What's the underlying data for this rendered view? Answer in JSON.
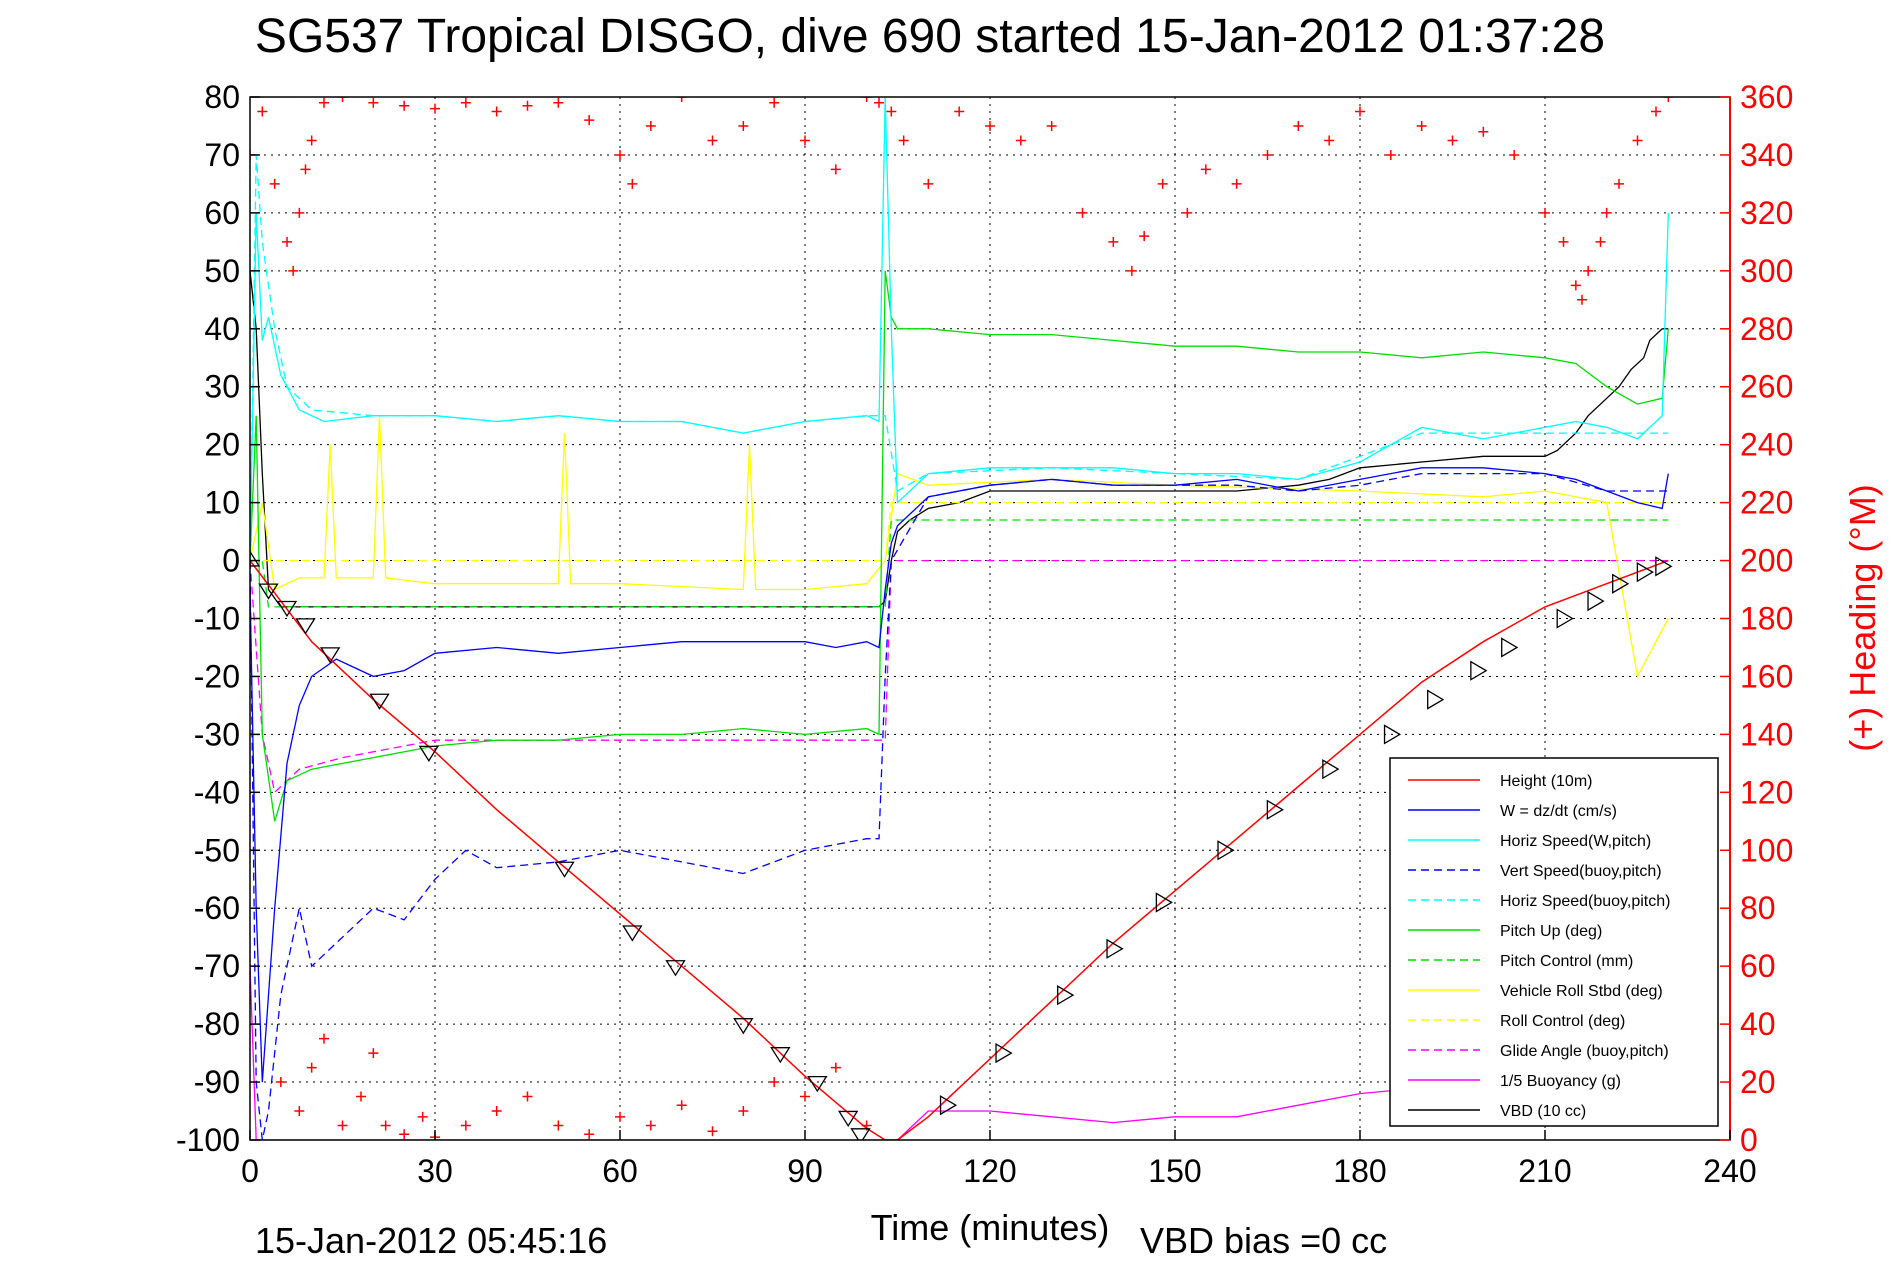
{
  "chart_data": {
    "type": "line",
    "title": "SG537 Tropical DISGO, dive 690 started 15-Jan-2012 01:37:28",
    "xlabel": "Time (minutes)",
    "ylabel_right": "(+) Heading (°M)",
    "xlim": [
      0,
      240
    ],
    "ylim": [
      -100,
      80
    ],
    "ylim_right": [
      0,
      360
    ],
    "x_ticks": [
      0,
      30,
      60,
      90,
      120,
      150,
      180,
      210,
      240
    ],
    "y_ticks": [
      80,
      70,
      60,
      50,
      40,
      30,
      20,
      10,
      0,
      -10,
      -20,
      -30,
      -40,
      -50,
      -60,
      -70,
      -80,
      -90,
      -100
    ],
    "y_right_ticks": [
      360,
      340,
      320,
      300,
      280,
      260,
      240,
      220,
      200,
      180,
      160,
      140,
      120,
      100,
      80,
      60,
      40,
      20,
      0
    ],
    "grid": true,
    "legend_position": "bottom-right",
    "footer_left": "15-Jan-2012 05:45:16",
    "footer_right": "VBD bias =0 cc",
    "colors": {
      "height": "#ff0000",
      "w": "#0000ff",
      "horiz_speed_w": "#00ffff",
      "vert_speed_buoy": "#0000ff",
      "horiz_speed_buoy": "#00ffff",
      "pitch_up": "#00dd00",
      "pitch_control": "#00dd00",
      "roll": "#ffff00",
      "roll_control": "#ffff00",
      "glide_angle": "#ff00ff",
      "buoyancy": "#ff00ff",
      "vbd": "#000000",
      "heading": "#ff0000"
    },
    "series": [
      {
        "key": "height",
        "name": "Height (10m)",
        "style": "solid",
        "x": [
          0,
          5,
          10,
          20,
          30,
          40,
          50,
          60,
          70,
          80,
          90,
          100,
          103,
          105,
          110,
          120,
          130,
          140,
          150,
          160,
          170,
          180,
          190,
          200,
          210,
          220,
          230
        ],
        "y": [
          0,
          -7,
          -14,
          -24,
          -33,
          -43,
          -52,
          -61,
          -70,
          -79,
          -89,
          -98,
          -100,
          -100,
          -96,
          -86,
          -76,
          -66,
          -57,
          -48,
          -39,
          -30,
          -21,
          -14,
          -8,
          -4,
          0
        ]
      },
      {
        "key": "w",
        "name": "W = dz/dt (cm/s)",
        "style": "solid",
        "x": [
          0,
          1,
          2,
          4,
          6,
          8,
          10,
          14,
          20,
          25,
          30,
          40,
          50,
          60,
          70,
          80,
          90,
          95,
          100,
          102,
          103,
          104,
          105,
          110,
          120,
          130,
          140,
          150,
          160,
          170,
          180,
          190,
          200,
          210,
          215,
          220,
          225,
          229,
          230
        ],
        "y": [
          -5,
          -60,
          -90,
          -60,
          -35,
          -25,
          -20,
          -17,
          -20,
          -19,
          -16,
          -15,
          -16,
          -15,
          -14,
          -14,
          -14,
          -15,
          -14,
          -15,
          -5,
          3,
          6,
          11,
          13,
          14,
          13,
          13,
          14,
          12,
          14,
          16,
          16,
          15,
          14,
          12,
          10,
          9,
          15
        ]
      },
      {
        "key": "horiz_speed_w",
        "name": "Horiz Speed(W,pitch)",
        "style": "solid",
        "x": [
          0,
          1,
          2,
          3,
          5,
          8,
          12,
          20,
          30,
          40,
          50,
          60,
          70,
          80,
          90,
          100,
          102,
          103,
          104,
          105,
          110,
          120,
          130,
          140,
          150,
          160,
          170,
          180,
          190,
          200,
          210,
          215,
          220,
          225,
          229,
          230
        ],
        "y": [
          0,
          60,
          38,
          42,
          32,
          26,
          24,
          25,
          25,
          24,
          25,
          24,
          24,
          22,
          24,
          25,
          24,
          80,
          40,
          10,
          15,
          16,
          16,
          16,
          15,
          15,
          14,
          17,
          23,
          21,
          23,
          24,
          23,
          21,
          25,
          60
        ]
      },
      {
        "key": "vert_speed_buoy",
        "name": "Vert Speed(buoy,pitch)",
        "style": "dashed",
        "x": [
          0,
          1,
          2,
          3,
          5,
          8,
          10,
          15,
          20,
          25,
          30,
          35,
          40,
          50,
          60,
          70,
          80,
          90,
          100,
          102,
          103,
          104,
          110,
          120,
          130,
          140,
          150,
          160,
          170,
          180,
          190,
          200,
          210,
          220,
          230
        ],
        "y": [
          0,
          -90,
          -100,
          -95,
          -75,
          -60,
          -70,
          -65,
          -60,
          -62,
          -55,
          -50,
          -53,
          -52,
          -50,
          -52,
          -54,
          -50,
          -48,
          -48,
          -20,
          0,
          11,
          13,
          14,
          13,
          13,
          13,
          12,
          13,
          15,
          15,
          15,
          12,
          12
        ]
      },
      {
        "key": "horiz_speed_buoy",
        "name": "Horiz Speed(buoy,pitch)",
        "style": "dashed",
        "x": [
          0,
          1,
          2,
          4,
          6,
          10,
          20,
          30,
          40,
          50,
          60,
          70,
          80,
          90,
          100,
          103,
          105,
          110,
          130,
          150,
          170,
          190,
          210,
          230
        ],
        "y": [
          0,
          70,
          55,
          40,
          30,
          26,
          25,
          25,
          24,
          25,
          24,
          24,
          22,
          24,
          25,
          25,
          12,
          15,
          16,
          15,
          14,
          22,
          22,
          22
        ]
      },
      {
        "key": "pitch_up",
        "name": "Pitch Up (deg)",
        "style": "solid",
        "x": [
          0,
          1,
          2,
          4,
          6,
          10,
          20,
          30,
          40,
          50,
          60,
          70,
          80,
          90,
          100,
          102,
          103,
          104,
          105,
          110,
          120,
          130,
          140,
          150,
          160,
          170,
          180,
          190,
          200,
          210,
          215,
          220,
          225,
          229,
          230
        ],
        "y": [
          0,
          25,
          -30,
          -45,
          -38,
          -36,
          -34,
          -32,
          -31,
          -31,
          -30,
          -30,
          -29,
          -30,
          -29,
          -30,
          50,
          42,
          40,
          40,
          39,
          39,
          38,
          37,
          37,
          36,
          36,
          35,
          36,
          35,
          34,
          30,
          27,
          28,
          40
        ]
      },
      {
        "key": "pitch_control",
        "name": "Pitch Control (mm)",
        "style": "dashed",
        "x": [
          0,
          2,
          3,
          10,
          30,
          60,
          90,
          100,
          103,
          104,
          110,
          150,
          180,
          210,
          230
        ],
        "y": [
          0,
          0,
          -8,
          -8,
          -8,
          -8,
          -8,
          -8,
          -8,
          7,
          7,
          7,
          7,
          7,
          7
        ]
      },
      {
        "key": "roll",
        "name": "Vehicle Roll Stbd (deg)",
        "style": "solid",
        "x": [
          0,
          2,
          4,
          8,
          12,
          13,
          14,
          20,
          21,
          22,
          30,
          50,
          51,
          52,
          60,
          80,
          81,
          82,
          90,
          100,
          103,
          105,
          110,
          130,
          150,
          180,
          200,
          210,
          220,
          225,
          230
        ],
        "y": [
          0,
          10,
          -5,
          -3,
          -3,
          20,
          -3,
          -3,
          25,
          -3,
          -4,
          -4,
          22,
          -4,
          -4,
          -5,
          20,
          -5,
          -5,
          -4,
          0,
          15,
          13,
          14,
          13,
          12,
          11,
          12,
          10,
          -20,
          -10
        ]
      },
      {
        "key": "roll_control",
        "name": "Roll Control (deg)",
        "style": "dashed",
        "x": [
          0,
          5,
          30,
          60,
          90,
          100,
          103,
          104,
          110,
          150,
          190,
          200,
          210,
          220,
          230
        ],
        "y": [
          0,
          0,
          0,
          0,
          0,
          0,
          0,
          10,
          10,
          10,
          10,
          10,
          10,
          10,
          10
        ]
      },
      {
        "key": "glide_angle",
        "name": "Glide Angle (buoy,pitch)",
        "style": "dashed",
        "x": [
          0,
          2,
          4,
          8,
          15,
          30,
          60,
          90,
          100,
          103,
          104,
          110,
          150,
          200,
          230
        ],
        "y": [
          0,
          -30,
          -40,
          -36,
          -34,
          -31,
          -31,
          -31,
          -31,
          -31,
          0,
          0,
          0,
          0,
          0
        ]
      },
      {
        "key": "buoyancy",
        "name": "1/5 Buoyancy (g)",
        "style": "solid",
        "x": [
          0,
          1,
          2,
          105,
          110,
          120,
          130,
          140,
          150,
          160,
          170,
          180,
          190,
          200
        ],
        "y": [
          -70,
          -100,
          -100,
          -100,
          -95,
          -95,
          -96,
          -97,
          -96,
          -96,
          -94,
          -92,
          -91,
          -91
        ]
      },
      {
        "key": "vbd",
        "name": "VBD (10 cc)",
        "style": "solid",
        "x": [
          0,
          1,
          2,
          3,
          5,
          10,
          30,
          60,
          90,
          100,
          102,
          103,
          104,
          105,
          107,
          110,
          115,
          120,
          140,
          160,
          170,
          175,
          180,
          190,
          200,
          210,
          212,
          215,
          217,
          220,
          222,
          224,
          226,
          227,
          229,
          230
        ],
        "y": [
          50,
          40,
          15,
          -5,
          -8,
          -8,
          -8,
          -8,
          -8,
          -8,
          -8,
          -7,
          0,
          5,
          7,
          9,
          10,
          12,
          12,
          12,
          13,
          14,
          16,
          17,
          18,
          18,
          19,
          22,
          25,
          28,
          30,
          33,
          35,
          38,
          40,
          40
        ]
      }
    ],
    "heading": {
      "name": "(+) Heading",
      "axis": "right",
      "x": [
        0,
        2,
        4,
        6,
        7,
        8,
        9,
        10,
        12,
        15,
        20,
        25,
        30,
        35,
        40,
        45,
        50,
        55,
        60,
        62,
        65,
        70,
        75,
        80,
        85,
        90,
        95,
        100,
        102,
        104,
        106,
        110,
        115,
        120,
        125,
        130,
        135,
        140,
        143,
        145,
        148,
        152,
        155,
        160,
        165,
        170,
        175,
        180,
        185,
        190,
        195,
        200,
        205,
        210,
        213,
        215,
        216,
        217,
        219,
        220,
        222,
        225,
        228,
        230
      ],
      "y": [
        340,
        355,
        330,
        310,
        300,
        320,
        335,
        345,
        358,
        360,
        358,
        357,
        356,
        358,
        355,
        357,
        358,
        352,
        340,
        330,
        350,
        360,
        345,
        350,
        358,
        345,
        335,
        360,
        358,
        355,
        345,
        330,
        355,
        350,
        345,
        350,
        320,
        310,
        300,
        312,
        330,
        320,
        335,
        330,
        340,
        350,
        345,
        355,
        340,
        350,
        345,
        348,
        340,
        320,
        310,
        295,
        290,
        300,
        310,
        320,
        330,
        345,
        355,
        360
      ]
    },
    "heading_low": {
      "x": [
        5,
        8,
        10,
        12,
        15,
        18,
        20,
        22,
        25,
        28,
        30,
        35,
        40,
        45,
        50,
        55,
        60,
        65,
        70,
        75,
        80,
        85,
        90,
        95,
        100
      ],
      "y": [
        20,
        10,
        25,
        35,
        5,
        15,
        30,
        5,
        2,
        8,
        1,
        5,
        10,
        15,
        5,
        2,
        8,
        5,
        12,
        3,
        10,
        20,
        15,
        25,
        5
      ]
    },
    "markers": {
      "descent_x": [
        0,
        3,
        6,
        9,
        13,
        21,
        29,
        51,
        62,
        69,
        80,
        86,
        92,
        97,
        99
      ],
      "descent_y": [
        0,
        -5,
        -8,
        -11,
        -16,
        -24,
        -33,
        -53,
        -64,
        -70,
        -80,
        -85,
        -90,
        -96,
        -99
      ],
      "ascent_x": [
        113,
        122,
        132,
        140,
        148,
        158,
        166,
        175,
        185,
        192,
        199,
        204,
        213,
        218,
        222,
        226,
        229
      ],
      "ascent_y": [
        -94,
        -85,
        -75,
        -67,
        -59,
        -50,
        -43,
        -36,
        -30,
        -24,
        -19,
        -15,
        -10,
        -7,
        -4,
        -2,
        -1
      ]
    },
    "legend": [
      {
        "key": "height",
        "label": "Height (10m)"
      },
      {
        "key": "w",
        "label": "W = dz/dt (cm/s)"
      },
      {
        "key": "horiz_speed_w",
        "label": "Horiz Speed(W,pitch)"
      },
      {
        "key": "vert_speed_buoy",
        "label": "Vert Speed(buoy,pitch)"
      },
      {
        "key": "horiz_speed_buoy",
        "label": "Horiz Speed(buoy,pitch)"
      },
      {
        "key": "pitch_up",
        "label": "Pitch Up (deg)"
      },
      {
        "key": "pitch_control",
        "label": "Pitch Control (mm)"
      },
      {
        "key": "roll",
        "label": "Vehicle Roll Stbd (deg)"
      },
      {
        "key": "roll_control",
        "label": "Roll Control (deg)"
      },
      {
        "key": "glide_angle",
        "label": "Glide Angle (buoy,pitch)"
      },
      {
        "key": "buoyancy",
        "label": "1/5 Buoyancy (g)"
      },
      {
        "key": "vbd",
        "label": "VBD (10 cc)"
      }
    ]
  }
}
